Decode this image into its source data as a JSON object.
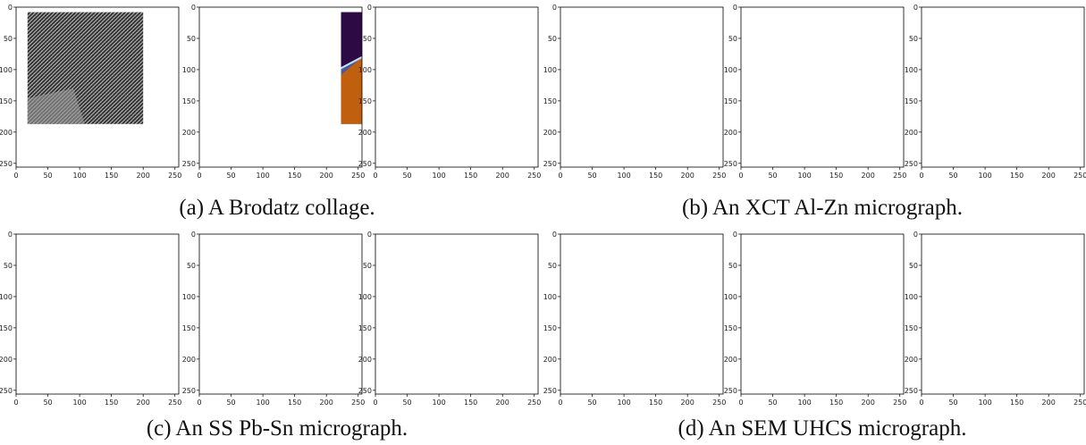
{
  "figure": {
    "axis_ticks": [
      0,
      50,
      100,
      150,
      200,
      250
    ],
    "subfigures": [
      {
        "caption": "(a) A Brodatz collage."
      },
      {
        "caption": "(b) An XCT Al-Zn micrograph."
      },
      {
        "caption": "(c) An SS Pb-Sn micrograph."
      },
      {
        "caption": "(d) An SEM UHCS micrograph."
      }
    ]
  }
}
